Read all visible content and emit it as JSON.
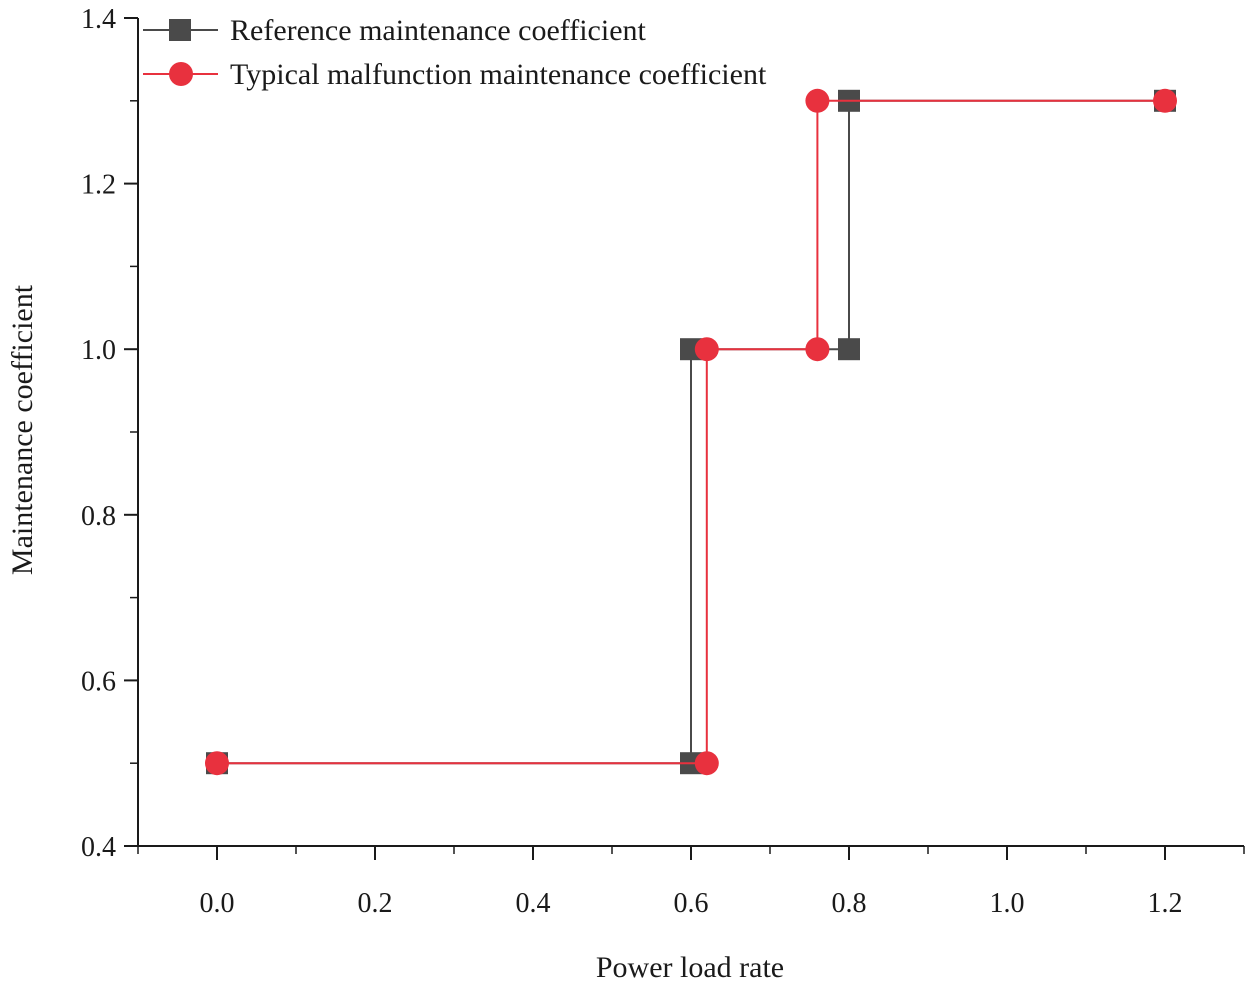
{
  "chart_data": {
    "type": "line",
    "title": "",
    "xlabel": "Power load rate",
    "ylabel": "Maintenance coefficient",
    "xlim": [
      -0.1,
      1.3
    ],
    "ylim": [
      0.4,
      1.4
    ],
    "xticks": [
      0.0,
      0.2,
      0.4,
      0.6,
      0.8,
      1.0,
      1.2
    ],
    "yticks": [
      0.4,
      0.6,
      0.8,
      1.0,
      1.2,
      1.4
    ],
    "xtick_labels": [
      "0.0",
      "0.2",
      "0.4",
      "0.6",
      "0.8",
      "1.0",
      "1.2"
    ],
    "ytick_labels": [
      "0.4",
      "0.6",
      "0.8",
      "1.0",
      "1.2",
      "1.4"
    ],
    "grid": false,
    "legend_position": "top-left",
    "series": [
      {
        "name": "Reference maintenance coefficient",
        "color": "#4a4a4a",
        "marker": "square",
        "x": [
          0.0,
          0.6,
          0.6,
          0.8,
          0.8,
          1.2
        ],
        "y": [
          0.5,
          0.5,
          1.0,
          1.0,
          1.3,
          1.3
        ]
      },
      {
        "name": "Typical malfunction maintenance coefficient",
        "color": "#e8313e",
        "marker": "circle",
        "x": [
          0.0,
          0.62,
          0.62,
          0.76,
          0.76,
          1.2
        ],
        "y": [
          0.5,
          0.5,
          1.0,
          1.0,
          1.3,
          1.3
        ]
      }
    ]
  }
}
